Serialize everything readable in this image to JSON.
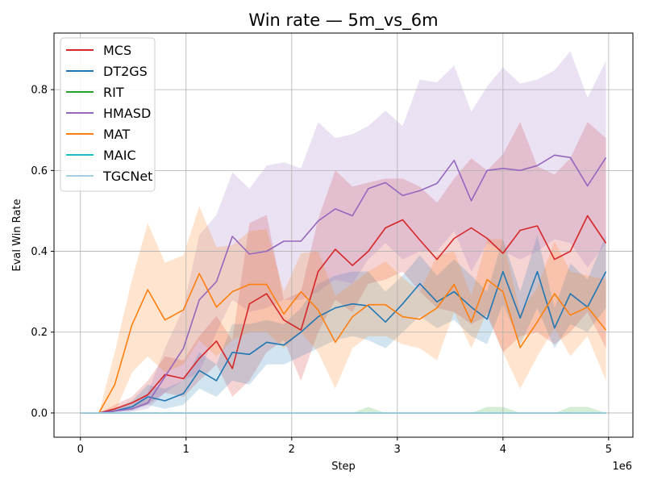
{
  "chart_data": {
    "type": "line",
    "title": "Win rate — 5m_vs_6m",
    "xlabel": "Step",
    "ylabel": "Eval Win Rate",
    "x_offset_label": "1e6",
    "xlim": [
      -0.25,
      5.23
    ],
    "ylim": [
      -0.06,
      0.94
    ],
    "x_ticks": [
      0,
      1,
      2,
      3,
      4,
      5
    ],
    "x_tick_labels": [
      "0",
      "1",
      "2",
      "3",
      "4",
      "5"
    ],
    "y_ticks": [
      0.0,
      0.2,
      0.4,
      0.6,
      0.8
    ],
    "y_tick_labels": [
      "0.0",
      "0.2",
      "0.4",
      "0.6",
      "0.8"
    ],
    "grid": true,
    "legend_position": "top-left",
    "x": [
      0,
      0.175,
      0.325,
      0.488,
      0.638,
      0.8,
      0.975,
      1.125,
      1.288,
      1.438,
      1.6,
      1.763,
      1.925,
      2.088,
      2.25,
      2.413,
      2.575,
      2.725,
      2.888,
      3.05,
      3.213,
      3.375,
      3.538,
      3.7,
      3.85,
      4.0,
      4.163,
      4.325,
      4.488,
      4.638,
      4.8,
      4.975
    ],
    "series": [
      {
        "name": "MCS",
        "color": "#d62728",
        "values": [
          0,
          0,
          0.01,
          0.025,
          0.045,
          0.095,
          0.085,
          0.135,
          0.178,
          0.11,
          0.27,
          0.295,
          0.23,
          0.205,
          0.35,
          0.405,
          0.365,
          0.4,
          0.458,
          0.478,
          0.428,
          0.38,
          0.432,
          0.458,
          0.432,
          0.395,
          0.452,
          0.463,
          0.38,
          0.4,
          0.488,
          0.42
        ],
        "lower": [
          0,
          0,
          0.005,
          0.01,
          0.02,
          0.05,
          0.04,
          0.08,
          0.12,
          0.04,
          0.08,
          0.15,
          0.18,
          0.08,
          0.2,
          0.28,
          0.25,
          0.32,
          0.33,
          0.35,
          0.3,
          0.26,
          0.25,
          0.22,
          0.24,
          0.15,
          0.19,
          0.2,
          0.17,
          0.2,
          0.25,
          0.16
        ],
        "upper": [
          0,
          0,
          0.02,
          0.04,
          0.08,
          0.14,
          0.13,
          0.19,
          0.24,
          0.18,
          0.47,
          0.49,
          0.28,
          0.3,
          0.48,
          0.6,
          0.56,
          0.57,
          0.58,
          0.58,
          0.56,
          0.52,
          0.58,
          0.63,
          0.6,
          0.64,
          0.72,
          0.61,
          0.59,
          0.63,
          0.72,
          0.68
        ]
      },
      {
        "name": "DT2GS",
        "color": "#1f77b4",
        "values": [
          0,
          0,
          0.005,
          0.015,
          0.04,
          0.03,
          0.048,
          0.105,
          0.08,
          0.15,
          0.145,
          0.175,
          0.168,
          0.2,
          0.238,
          0.26,
          0.27,
          0.265,
          0.225,
          0.27,
          0.32,
          0.275,
          0.3,
          0.262,
          0.232,
          0.35,
          0.235,
          0.35,
          0.21,
          0.295,
          0.262,
          0.35
        ],
        "lower": [
          0,
          0,
          0.002,
          0.005,
          0.02,
          0.01,
          0.02,
          0.06,
          0.04,
          0.08,
          0.07,
          0.12,
          0.12,
          0.14,
          0.16,
          0.18,
          0.19,
          0.18,
          0.16,
          0.2,
          0.24,
          0.21,
          0.23,
          0.19,
          0.17,
          0.27,
          0.17,
          0.26,
          0.16,
          0.22,
          0.2,
          0.26
        ],
        "upper": [
          0,
          0,
          0.01,
          0.03,
          0.07,
          0.06,
          0.08,
          0.15,
          0.12,
          0.22,
          0.22,
          0.23,
          0.22,
          0.26,
          0.32,
          0.34,
          0.35,
          0.35,
          0.3,
          0.34,
          0.39,
          0.34,
          0.38,
          0.34,
          0.3,
          0.43,
          0.3,
          0.44,
          0.26,
          0.37,
          0.33,
          0.44
        ]
      },
      {
        "name": "RIT",
        "color": "#2ca02c",
        "values": [
          0,
          0,
          0,
          0,
          0,
          0,
          0,
          0,
          0,
          0,
          0,
          0,
          0,
          0,
          0,
          0,
          0,
          0,
          0,
          0,
          0,
          0,
          0,
          0,
          0,
          0,
          0,
          0,
          0,
          0,
          0,
          0
        ],
        "lower": [
          0,
          0,
          0,
          0,
          0,
          0,
          0,
          0,
          0,
          0,
          0,
          0,
          0,
          0,
          0,
          0,
          0,
          0,
          0,
          0,
          0,
          0,
          0,
          0,
          0,
          0,
          0,
          0,
          0,
          0,
          0,
          0
        ],
        "upper": [
          0,
          0,
          0,
          0,
          0,
          0,
          0,
          0,
          0,
          0,
          0,
          0,
          0,
          0,
          0,
          0,
          0,
          0.015,
          0,
          0,
          0,
          0,
          0,
          0,
          0.015,
          0.015,
          0,
          0,
          0,
          0.015,
          0.015,
          0
        ]
      },
      {
        "name": "HMASD",
        "color": "#9467bd",
        "values": [
          0,
          0,
          0.005,
          0.01,
          0.025,
          0.09,
          0.16,
          0.28,
          0.325,
          0.437,
          0.393,
          0.4,
          0.425,
          0.425,
          0.475,
          0.505,
          0.488,
          0.555,
          0.57,
          0.538,
          0.55,
          0.568,
          0.625,
          0.525,
          0.6,
          0.605,
          0.6,
          0.612,
          0.638,
          0.632,
          0.562,
          0.632
        ],
        "lower": [
          0,
          0,
          0.001,
          0.003,
          0.01,
          0.05,
          0.08,
          0.1,
          0.2,
          0.28,
          0.25,
          0.26,
          0.28,
          0.28,
          0.3,
          0.33,
          0.32,
          0.38,
          0.42,
          0.38,
          0.4,
          0.4,
          0.45,
          0.35,
          0.42,
          0.4,
          0.38,
          0.4,
          0.43,
          0.42,
          0.36,
          0.42
        ],
        "upper": [
          0,
          0,
          0.01,
          0.02,
          0.05,
          0.16,
          0.26,
          0.44,
          0.49,
          0.595,
          0.555,
          0.612,
          0.62,
          0.605,
          0.72,
          0.68,
          0.69,
          0.71,
          0.748,
          0.71,
          0.825,
          0.818,
          0.86,
          0.745,
          0.808,
          0.855,
          0.815,
          0.825,
          0.848,
          0.895,
          0.78,
          0.872
        ]
      },
      {
        "name": "MAT",
        "color": "#ff7f0e",
        "values": [
          0,
          0,
          0.07,
          0.218,
          0.305,
          0.23,
          0.255,
          0.345,
          0.262,
          0.3,
          0.318,
          0.318,
          0.245,
          0.3,
          0.255,
          0.175,
          0.238,
          0.268,
          0.268,
          0.238,
          0.232,
          0.26,
          0.318,
          0.225,
          0.33,
          0.3,
          0.162,
          0.225,
          0.295,
          0.242,
          0.262,
          0.205
        ],
        "lower": [
          0,
          0,
          0,
          0.1,
          0.14,
          0.1,
          0.12,
          0.18,
          0.14,
          0.18,
          0.2,
          0.2,
          0.16,
          0.2,
          0.15,
          0.06,
          0.16,
          0.19,
          0.19,
          0.17,
          0.16,
          0.13,
          0.25,
          0.16,
          0.25,
          0.15,
          0.06,
          0.14,
          0.21,
          0.14,
          0.19,
          0.08
        ],
        "upper": [
          0,
          0,
          0.15,
          0.33,
          0.47,
          0.372,
          0.39,
          0.512,
          0.41,
          0.415,
          0.45,
          0.455,
          0.3,
          0.395,
          0.4,
          0.29,
          0.32,
          0.35,
          0.375,
          0.335,
          0.3,
          0.39,
          0.4,
          0.29,
          0.43,
          0.43,
          0.25,
          0.31,
          0.425,
          0.35,
          0.34,
          0.33
        ]
      },
      {
        "name": "MAIC",
        "color": "#17becf",
        "values": [
          0,
          0,
          0,
          0,
          0,
          0,
          0,
          0,
          0,
          0,
          0,
          0,
          0,
          0,
          0,
          0,
          0,
          0,
          0,
          0,
          0,
          0,
          0,
          0,
          0,
          0,
          0,
          0,
          0,
          0,
          0,
          0
        ],
        "lower": [
          0,
          0,
          0,
          0,
          0,
          0,
          0,
          0,
          0,
          0,
          0,
          0,
          0,
          0,
          0,
          0,
          0,
          0,
          0,
          0,
          0,
          0,
          0,
          0,
          0,
          0,
          0,
          0,
          0,
          0,
          0,
          0
        ],
        "upper": [
          0,
          0,
          0,
          0,
          0,
          0,
          0,
          0,
          0,
          0,
          0,
          0,
          0,
          0,
          0,
          0,
          0,
          0,
          0,
          0,
          0,
          0,
          0,
          0,
          0,
          0,
          0,
          0,
          0,
          0,
          0,
          0
        ]
      },
      {
        "name": "TGCNet",
        "color": "#a6cee3",
        "values": [
          0,
          0,
          0,
          0,
          0,
          0,
          0,
          0,
          0,
          0,
          0,
          0,
          0,
          0,
          0,
          0,
          0,
          0,
          0,
          0,
          0,
          0,
          0,
          0,
          0,
          0,
          0,
          0,
          0,
          0,
          0,
          0
        ],
        "lower": [
          0,
          0,
          0,
          0,
          0,
          0,
          0,
          0,
          0,
          0,
          0,
          0,
          0,
          0,
          0,
          0,
          0,
          0,
          0,
          0,
          0,
          0,
          0,
          0,
          0,
          0,
          0,
          0,
          0,
          0,
          0,
          0
        ],
        "upper": [
          0,
          0,
          0,
          0,
          0,
          0,
          0,
          0,
          0,
          0,
          0,
          0,
          0,
          0,
          0,
          0,
          0,
          0,
          0,
          0,
          0,
          0,
          0,
          0,
          0,
          0,
          0,
          0,
          0,
          0,
          0,
          0
        ]
      }
    ]
  }
}
